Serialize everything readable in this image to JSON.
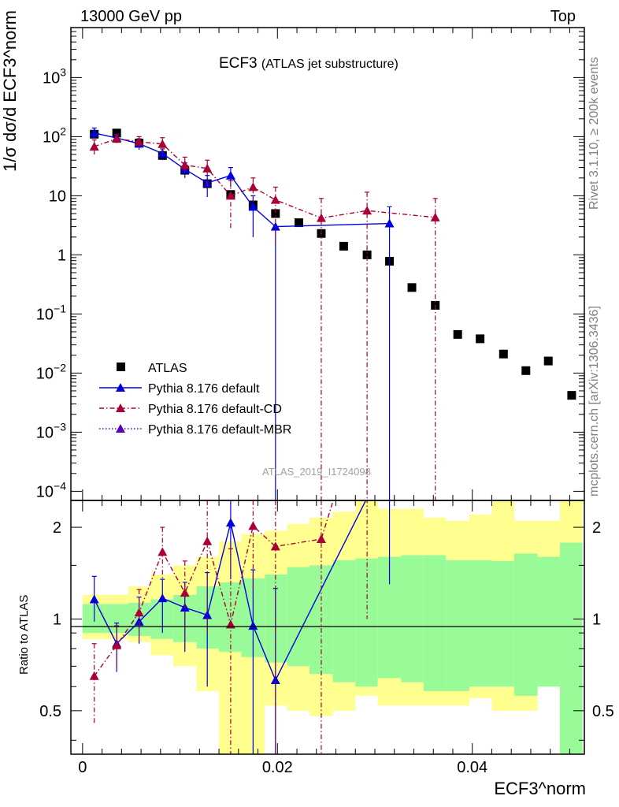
{
  "header": {
    "energy_label": "13000 GeV pp",
    "category_label": "Top",
    "title_main": "ECF3",
    "title_sub": "(ATLAS jet substructure)",
    "rivet_label": "Rivet 3.1.10, ≥ 200k events",
    "mcplots_label": "mcplots.cern.ch [arXiv:1306.3436]",
    "analysis_label": "ATLAS_2019_I1724098"
  },
  "axes": {
    "ylabel_top": "1/σ dσ/d ECF3^norm",
    "ylabel_bottom": "Ratio to ATLAS",
    "xlabel": "ECF3^norm"
  },
  "chart_data": [
    {
      "type": "scatter",
      "panel": "main",
      "xlim": [
        -0.0012,
        0.0515
      ],
      "ylim": [
        7e-05,
        7000
      ],
      "yscale": "log",
      "x_ticks": [
        0,
        0.02,
        0.04
      ],
      "y_ticks": [
        {
          "value": 0.0001,
          "label": "10^-4"
        },
        {
          "value": 0.001,
          "label": "10^-3"
        },
        {
          "value": 0.01,
          "label": "10^-2"
        },
        {
          "value": 0.1,
          "label": "10^-1"
        },
        {
          "value": 1,
          "label": "1"
        },
        {
          "value": 10,
          "label": "10"
        },
        {
          "value": 100,
          "label": "10^2"
        },
        {
          "value": 1000,
          "label": "10^3"
        }
      ],
      "legend_position": "lower-left",
      "series": [
        {
          "name": "ATLAS",
          "color": "#000000",
          "marker": "square",
          "x": [
            0.0012,
            0.0035,
            0.0058,
            0.0082,
            0.0105,
            0.0128,
            0.0152,
            0.0175,
            0.0198,
            0.0222,
            0.0245,
            0.0268,
            0.0292,
            0.0315,
            0.0338,
            0.0362,
            0.0385,
            0.0408,
            0.0432,
            0.0455,
            0.0478,
            0.0502
          ],
          "y": [
            110,
            115,
            78,
            48,
            27,
            16,
            10.5,
            7,
            5,
            3.5,
            2.3,
            1.4,
            1.0,
            0.78,
            0.28,
            0.14,
            0.045,
            0.038,
            0.021,
            0.011,
            0.016,
            0.0042
          ]
        },
        {
          "name": "Pythia 8.176 default",
          "color": "#0000dd",
          "line": "solid",
          "marker": "triangle",
          "x": [
            0.0012,
            0.0035,
            0.0058,
            0.0082,
            0.0105,
            0.0128,
            0.0152,
            0.0175,
            0.0198,
            0.0315
          ],
          "y": [
            115,
            95,
            76,
            52,
            28,
            16.5,
            22,
            6.5,
            3.0,
            3.4
          ],
          "y_low": [
            95,
            78,
            60,
            40,
            20,
            9.5,
            14,
            2.0,
            1e-05,
            1e-05
          ],
          "y_high": [
            140,
            110,
            92,
            62,
            36,
            22,
            30,
            10,
            3.0,
            6.5
          ]
        },
        {
          "name": "Pythia 8.176 default-CD",
          "color": "#aa0033",
          "line": "dashdot",
          "marker": "triangle",
          "x": [
            0.0012,
            0.0035,
            0.0058,
            0.0082,
            0.0105,
            0.0128,
            0.0152,
            0.0175,
            0.0198,
            0.0245,
            0.0292,
            0.0362
          ],
          "y": [
            68,
            92,
            82,
            75,
            33,
            29,
            10,
            14,
            8.5,
            4.2,
            5.6,
            4.3
          ],
          "y_low": [
            50,
            78,
            65,
            50,
            22,
            13,
            2.8,
            8,
            1.5,
            1e-05,
            1e-05,
            1e-05
          ],
          "y_high": [
            88,
            108,
            100,
            96,
            45,
            40,
            18,
            20,
            14,
            9,
            11.5,
            9
          ]
        },
        {
          "name": "Pythia 8.176 default-MBR",
          "color": "#5500bb",
          "line": "dotted",
          "marker": "triangle",
          "x": [],
          "y": []
        }
      ]
    },
    {
      "type": "line",
      "panel": "ratio",
      "xlim": [
        -0.0012,
        0.0515
      ],
      "ylim": [
        0.36,
        2.45
      ],
      "yscale": "log",
      "y_ticks": [
        {
          "value": 0.5,
          "label": "0.5"
        },
        {
          "value": 1,
          "label": "1"
        },
        {
          "value": 2,
          "label": "2"
        }
      ],
      "x_ticks": [
        {
          "value": 0,
          "label": "0"
        },
        {
          "value": 0.02,
          "label": "0.02"
        },
        {
          "value": 0.04,
          "label": "0.04"
        }
      ],
      "bin_edges": [
        0.0,
        0.0023,
        0.0047,
        0.007,
        0.0093,
        0.0117,
        0.014,
        0.0163,
        0.0187,
        0.021,
        0.0233,
        0.0257,
        0.028,
        0.0303,
        0.0327,
        0.035,
        0.0373,
        0.0397,
        0.042,
        0.0443,
        0.0467,
        0.049,
        0.0513
      ],
      "band_stat_low": [
        0.9,
        0.9,
        0.88,
        0.86,
        0.84,
        0.8,
        0.78,
        0.75,
        0.72,
        0.7,
        0.66,
        0.62,
        0.6,
        0.64,
        0.62,
        0.58,
        0.58,
        0.6,
        0.6,
        0.56,
        0.6,
        0.2
      ],
      "band_stat_high": [
        1.12,
        1.12,
        1.13,
        1.16,
        1.2,
        1.28,
        1.32,
        1.36,
        1.4,
        1.48,
        1.5,
        1.56,
        1.58,
        1.6,
        1.62,
        1.62,
        1.56,
        1.56,
        1.55,
        1.64,
        1.6,
        1.78
      ],
      "band_total_low": [
        0.86,
        0.86,
        0.84,
        0.76,
        0.7,
        0.58,
        0.3,
        0.3,
        0.52,
        0.5,
        0.48,
        0.5,
        0.56,
        0.52,
        0.52,
        0.52,
        0.52,
        0.55,
        0.5,
        0.5,
        0.6,
        0.2
      ],
      "band_total_high": [
        1.2,
        1.2,
        1.28,
        1.4,
        1.5,
        1.6,
        1.8,
        1.9,
        1.95,
        2.05,
        2.15,
        2.25,
        2.45,
        2.3,
        2.3,
        2.15,
        2.1,
        2.2,
        2.45,
        2.1,
        2.1,
        2.45
      ],
      "band_colors": {
        "stat": "#98fb98",
        "total": "#ffff90"
      },
      "series": [
        {
          "name": "Pythia 8.176 default",
          "color": "#0000dd",
          "line": "solid",
          "x": [
            0.0012,
            0.0035,
            0.0058,
            0.0082,
            0.0105,
            0.0128,
            0.0152,
            0.0175,
            0.0198,
            0.0315
          ],
          "y": [
            1.16,
            0.83,
            0.98,
            1.17,
            1.09,
            1.03,
            2.07,
            0.95,
            0.63,
            3.5
          ],
          "y_low": [
            0.98,
            0.67,
            0.83,
            0.9,
            0.78,
            0.6,
            1.35,
            0.3,
            0.2,
            1.3
          ],
          "y_high": [
            1.38,
            0.97,
            1.18,
            1.35,
            1.32,
            1.42,
            2.45,
            1.45,
            1.26,
            5.0
          ]
        },
        {
          "name": "Pythia 8.176 default-CD",
          "color": "#aa0033",
          "line": "dashdot",
          "x": [
            0.0012,
            0.0035,
            0.0058,
            0.0082,
            0.0105,
            0.0128,
            0.0152,
            0.0175,
            0.0198,
            0.0245,
            0.0292
          ],
          "y": [
            0.65,
            0.82,
            1.05,
            1.66,
            1.22,
            1.8,
            0.96,
            2.02,
            1.73,
            1.83,
            5.6
          ],
          "y_low": [
            0.45,
            0.7,
            0.85,
            1.35,
            0.8,
            0.9,
            0.3,
            1.2,
            0.3,
            0.3,
            1.0
          ],
          "y_high": [
            0.83,
            0.95,
            1.25,
            2.0,
            1.55,
            2.45,
            1.7,
            2.45,
            2.45,
            2.45,
            9
          ]
        }
      ]
    }
  ]
}
